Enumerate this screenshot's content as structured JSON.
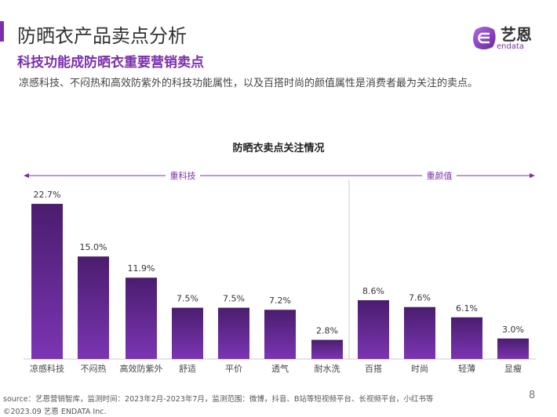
{
  "header": {
    "title": "防晒衣产品卖点分析",
    "subtitle": "科技功能成防晒衣重要营销卖点",
    "description": "凉感科技、不闷热和高效防紫外的科技功能属性，以及百搭时尚的颜值属性是消费者最为关注的卖点。",
    "logo_text": "艺恩",
    "logo_sub": "endata"
  },
  "chart_data": {
    "type": "bar",
    "title": "防晒衣卖点关注情况",
    "groups": [
      {
        "label": "重科技",
        "categories": [
          "凉感科技",
          "不闷热",
          "高效防紫外",
          "舒适",
          "平价",
          "透气",
          "耐水洗"
        ]
      },
      {
        "label": "重颜值",
        "categories": [
          "百搭",
          "时尚",
          "轻薄",
          "显瘦"
        ]
      }
    ],
    "categories": [
      "凉感科技",
      "不闷热",
      "高效防紫外",
      "舒适",
      "平价",
      "透气",
      "耐水洗",
      "百搭",
      "时尚",
      "轻薄",
      "显瘦"
    ],
    "values": [
      22.7,
      15.0,
      11.9,
      7.5,
      7.5,
      7.2,
      2.8,
      8.6,
      7.6,
      6.1,
      3.0
    ],
    "labels": [
      "22.7%",
      "15.0%",
      "11.9%",
      "7.5%",
      "7.5%",
      "7.2%",
      "2.8%",
      "8.6%",
      "7.6%",
      "6.1%",
      "3.0%"
    ],
    "unit": "%",
    "colors": {
      "top": "#4a1d6e",
      "bottom": "#7b35b3"
    }
  },
  "footer": {
    "source": "source：艺恩营销智库，监测时间：2023年2月-2023年7月，监测范围：微博，抖音、B站等短视频平台、长视频平台，小红书等",
    "copyright": "©2023.09 艺恩 ENDATA Inc.",
    "page": "8"
  }
}
